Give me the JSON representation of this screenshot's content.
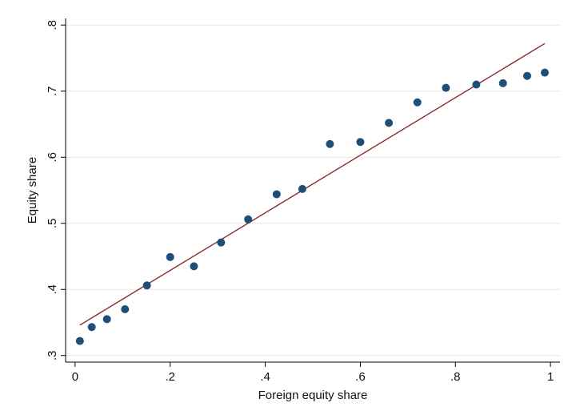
{
  "chart_data": {
    "type": "scatter",
    "title": "",
    "xlabel": "Foreign equity share",
    "ylabel": "Equity share",
    "xlim": [
      -0.02,
      1.02
    ],
    "ylim": [
      0.29,
      0.81
    ],
    "xticks": [
      0,
      0.2,
      0.4,
      0.6,
      0.8,
      1
    ],
    "xtick_labels": [
      "0",
      ".2",
      ".4",
      ".6",
      ".8",
      "1"
    ],
    "yticks": [
      0.3,
      0.4,
      0.5,
      0.6,
      0.7,
      0.8
    ],
    "ytick_labels": [
      ".3",
      ".4",
      ".5",
      ".6",
      ".7",
      ".8"
    ],
    "grid": "horizontal",
    "legend": "none",
    "series": [
      {
        "type": "scatter",
        "color": "#1f4e79",
        "points": [
          {
            "x": 0.01,
            "y": 0.322
          },
          {
            "x": 0.035,
            "y": 0.343
          },
          {
            "x": 0.067,
            "y": 0.355
          },
          {
            "x": 0.105,
            "y": 0.37
          },
          {
            "x": 0.151,
            "y": 0.406
          },
          {
            "x": 0.2,
            "y": 0.449
          },
          {
            "x": 0.25,
            "y": 0.435
          },
          {
            "x": 0.307,
            "y": 0.471
          },
          {
            "x": 0.364,
            "y": 0.506
          },
          {
            "x": 0.424,
            "y": 0.544
          },
          {
            "x": 0.478,
            "y": 0.552
          },
          {
            "x": 0.536,
            "y": 0.62
          },
          {
            "x": 0.6,
            "y": 0.623
          },
          {
            "x": 0.66,
            "y": 0.652
          },
          {
            "x": 0.72,
            "y": 0.683
          },
          {
            "x": 0.78,
            "y": 0.705
          },
          {
            "x": 0.844,
            "y": 0.71
          },
          {
            "x": 0.9,
            "y": 0.712
          },
          {
            "x": 0.951,
            "y": 0.723
          },
          {
            "x": 0.988,
            "y": 0.728
          }
        ]
      },
      {
        "type": "line",
        "color": "#8b2c2c",
        "points": [
          {
            "x": 0.01,
            "y": 0.346
          },
          {
            "x": 0.988,
            "y": 0.772
          }
        ]
      }
    ]
  }
}
